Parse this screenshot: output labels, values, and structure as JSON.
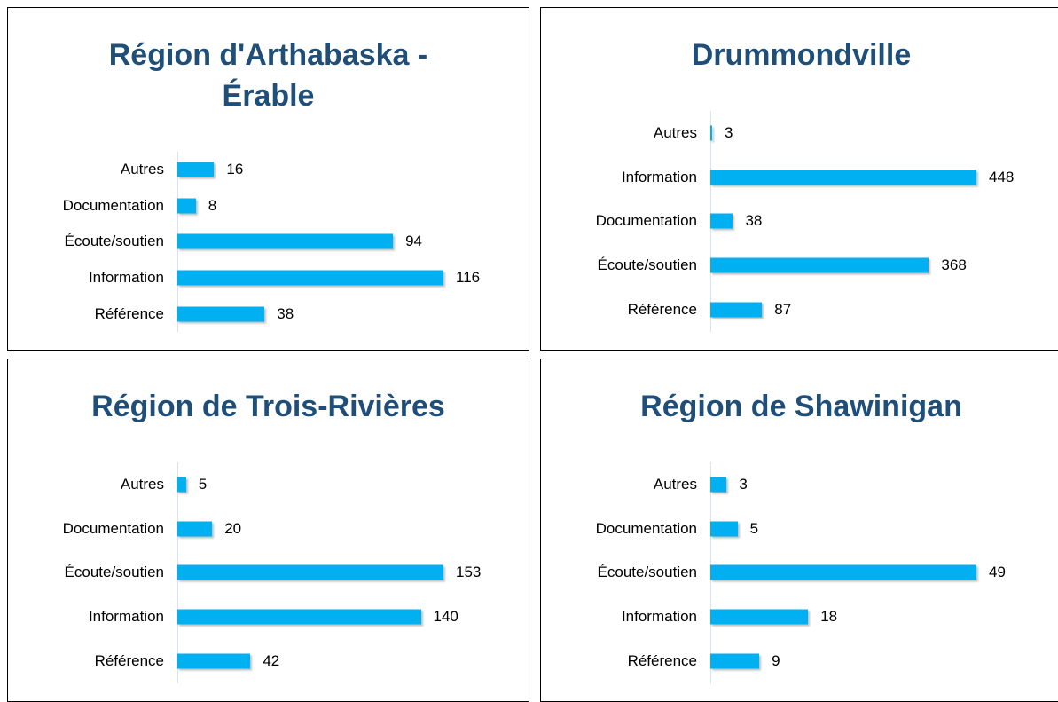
{
  "chart_data": [
    {
      "type": "bar",
      "title": "Région d'Arthabaska - Érable",
      "categories": [
        "Autres",
        "Documentation",
        "Écoute/soutien",
        "Information",
        "Référence"
      ],
      "values": [
        16,
        8,
        94,
        116,
        38
      ],
      "color": "#00b0f0"
    },
    {
      "type": "bar",
      "title": "Drummondville",
      "categories": [
        "Autres",
        "Information",
        "Documentation",
        "Écoute/soutien",
        "Référence"
      ],
      "values": [
        3,
        448,
        38,
        368,
        87
      ],
      "color": "#00b0f0"
    },
    {
      "type": "bar",
      "title": "Région de Trois-Rivières",
      "categories": [
        "Autres",
        "Documentation",
        "Écoute/soutien",
        "Information",
        "Référence"
      ],
      "values": [
        5,
        20,
        153,
        140,
        42
      ],
      "color": "#00b0f0"
    },
    {
      "type": "bar",
      "title": "Région de Shawinigan",
      "categories": [
        "Autres",
        "Documentation",
        "Écoute/soutien",
        "Information",
        "Référence"
      ],
      "values": [
        3,
        5,
        49,
        18,
        9
      ],
      "color": "#00b0f0"
    }
  ]
}
